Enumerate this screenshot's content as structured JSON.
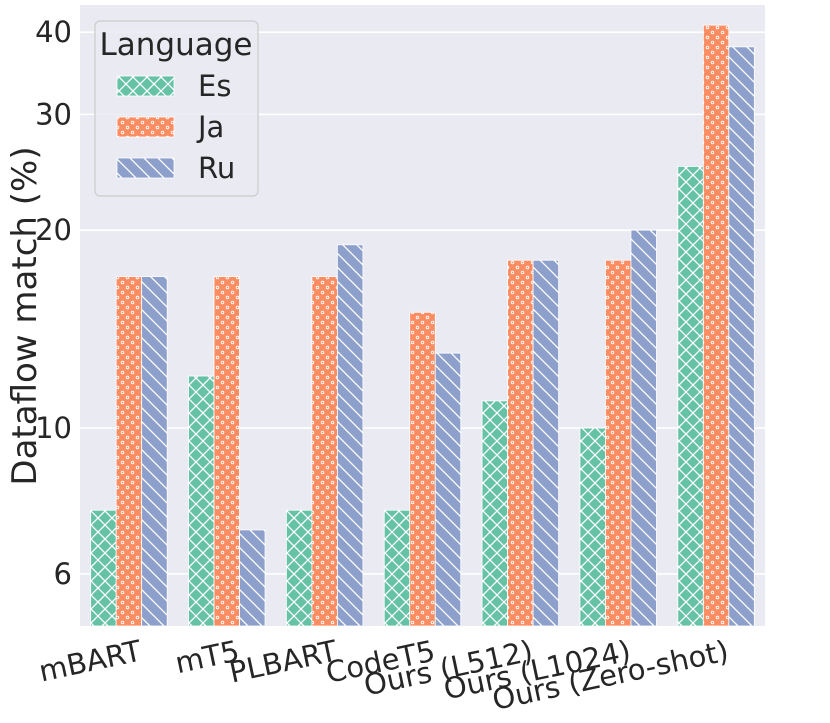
{
  "chart_data": {
    "type": "bar",
    "title": "",
    "xlabel": "",
    "ylabel": "Dataflow match (%)",
    "yscale": "log",
    "ylim": [
      5,
      44
    ],
    "yticks": [
      6,
      10,
      20,
      30,
      40
    ],
    "grid": true,
    "legend": {
      "title": "Language",
      "position": "top-left"
    },
    "categories": [
      "mBART",
      "mT5",
      "PLBART",
      "CodeT5",
      "Ours (L512)",
      "Ours (L1024)",
      "Ours (Zero-shot)"
    ],
    "series": [
      {
        "name": "Es",
        "color": "#66c2a5",
        "pattern": "crosshatch",
        "values": [
          7.5,
          12,
          7.5,
          7.5,
          11,
          10,
          25
        ]
      },
      {
        "name": "Ja",
        "color": "#fc8d62",
        "pattern": "dots",
        "values": [
          17,
          17,
          17,
          15,
          18,
          18,
          41
        ]
      },
      {
        "name": "Ru",
        "color": "#8da0cb",
        "pattern": "backslash",
        "values": [
          17,
          7,
          19,
          13,
          18,
          20,
          38
        ]
      }
    ]
  }
}
